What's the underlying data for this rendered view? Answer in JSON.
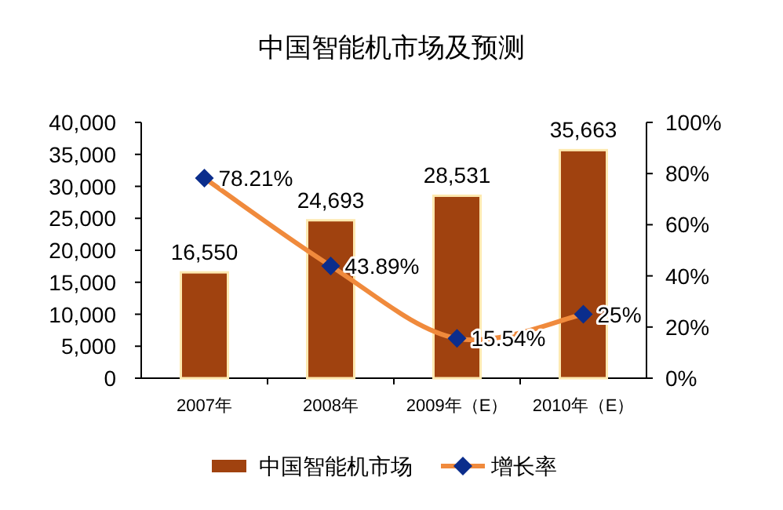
{
  "chart_data": {
    "type": "bar",
    "title": "中国智能机市场及预测",
    "categories": [
      "2007年",
      "2008年",
      "2009年（E）",
      "2010年（E）"
    ],
    "series": [
      {
        "name": "中国智能机市场",
        "color": "#a0420f",
        "values": [
          16550,
          24693,
          28531,
          35663
        ],
        "value_labels": [
          "16,550",
          "24,693",
          "28,531",
          "35,663"
        ]
      },
      {
        "name": "增长率",
        "type": "line",
        "axis": "y2",
        "color": "#f08a3c",
        "marker": "diamond",
        "colors": [
          "#0b2d8c",
          "#0b2d8c",
          "#0b2d8c",
          "#0b2d8c"
        ],
        "values": [
          78.21,
          43.89,
          15.54,
          25
        ],
        "value_labels": [
          "78.21%",
          "43.89%",
          "15.54%",
          "25%"
        ]
      }
    ],
    "ylim": [
      0,
      40000
    ],
    "yticks": [
      {
        "value": 0,
        "label": "0"
      },
      {
        "value": 5000,
        "label": "5,000"
      },
      {
        "value": 10000,
        "label": "10,000"
      },
      {
        "value": 15000,
        "label": "15,000"
      },
      {
        "value": 20000,
        "label": "20,000"
      },
      {
        "value": 25000,
        "label": "25,000"
      },
      {
        "value": 30000,
        "label": "30,000"
      },
      {
        "value": 35000,
        "label": "35,000"
      },
      {
        "value": 40000,
        "label": "40,000"
      }
    ],
    "y2lim": [
      0,
      100
    ],
    "y2ticks": [
      {
        "value": 0,
        "label": "0%"
      },
      {
        "value": 20,
        "label": "20%"
      },
      {
        "value": 40,
        "label": "40%"
      },
      {
        "value": 60,
        "label": "60%"
      },
      {
        "value": 80,
        "label": "80%"
      },
      {
        "value": 100,
        "label": "100%"
      }
    ],
    "legend": "bottom",
    "grid": false
  }
}
